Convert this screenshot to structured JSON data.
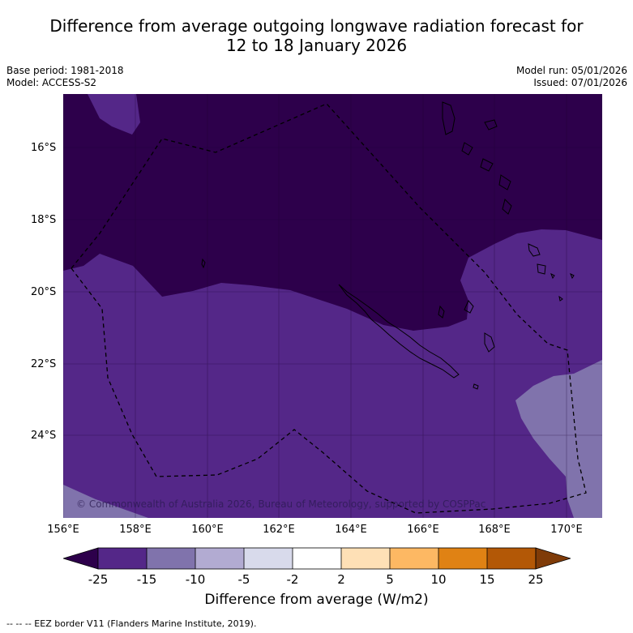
{
  "title": {
    "line1": "Difference from average outgoing longwave radiation forecast for",
    "line2": "12 to 18 January 2026"
  },
  "meta": {
    "base_period": "Base period: 1981-2018",
    "model": "Model: ACCESS-S2",
    "model_run": "Model run: 05/01/2026",
    "issued": "Issued: 07/01/2026"
  },
  "map": {
    "lon_range": [
      156,
      171
    ],
    "lat_range": [
      -14.8,
      -26.6
    ],
    "latitudes": [
      "16°S",
      "18°S",
      "20°S",
      "22°S",
      "24°S"
    ],
    "longitudes": [
      "156°E",
      "158°E",
      "160°E",
      "162°E",
      "164°E",
      "166°E",
      "168°E",
      "170°E"
    ],
    "copyright": "© Commonwealth of Australia 2026, Bureau of Meteorology, supported by COSPPac",
    "regions": {
      "northern": "-25 and below",
      "central": "-25 to -15",
      "southeast": "-15 to -10"
    }
  },
  "colorbar": {
    "title": "Difference from average (W/m2)",
    "ticks": [
      "-25",
      "-15",
      "-10",
      "-5",
      "-2",
      "2",
      "5",
      "10",
      "15",
      "25"
    ],
    "colors": {
      "under": "#2d004b",
      "bins": [
        "#542788",
        "#8073ac",
        "#b2abd2",
        "#d8daeb",
        "#ffffff",
        "#fee0b6",
        "#fdb863",
        "#e08214",
        "#b35806"
      ],
      "over": "#7f3b08"
    }
  },
  "footnote": "--  --  -- EEZ border V11 (Flanders Marine Institute, 2019)."
}
